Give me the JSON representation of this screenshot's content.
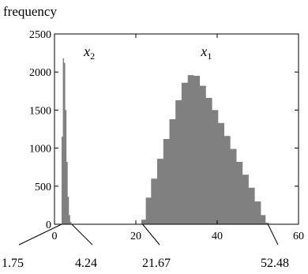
{
  "chart_data": {
    "type": "bar",
    "ylabel": "frequency",
    "xlim": [
      0,
      60
    ],
    "ylim": [
      0,
      2500
    ],
    "x_ticks": [
      0,
      20,
      40,
      60
    ],
    "y_ticks": [
      0,
      500,
      1000,
      1500,
      2000,
      2500
    ],
    "fill_color": "#808080",
    "series": [
      {
        "name": "x",
        "name_subscript": "2",
        "bin_centers": [
          1.9,
          2.2,
          2.5,
          2.8,
          3.1,
          3.4,
          3.7,
          4.0
        ],
        "values": [
          1150,
          2180,
          2120,
          1500,
          820,
          360,
          120,
          30
        ]
      },
      {
        "name": "x",
        "name_subscript": "1",
        "bin_centers": [
          21.9,
          23,
          24.5,
          26,
          27.5,
          29,
          30.5,
          32,
          33.5,
          35,
          36.5,
          38,
          39.5,
          41,
          42.5,
          44,
          45.5,
          47,
          48.5,
          50,
          51.5,
          52.3
        ],
        "values": [
          60,
          350,
          600,
          860,
          1120,
          1380,
          1630,
          1860,
          1960,
          1950,
          1820,
          1660,
          1500,
          1330,
          1160,
          990,
          820,
          650,
          480,
          300,
          120,
          20
        ]
      }
    ],
    "annotations": [
      {
        "label": "1.75",
        "x": 1.75
      },
      {
        "label": "4.24",
        "x": 4.24
      },
      {
        "label": "21.67",
        "x": 21.67
      },
      {
        "label": "52.48",
        "x": 52.48
      }
    ]
  }
}
